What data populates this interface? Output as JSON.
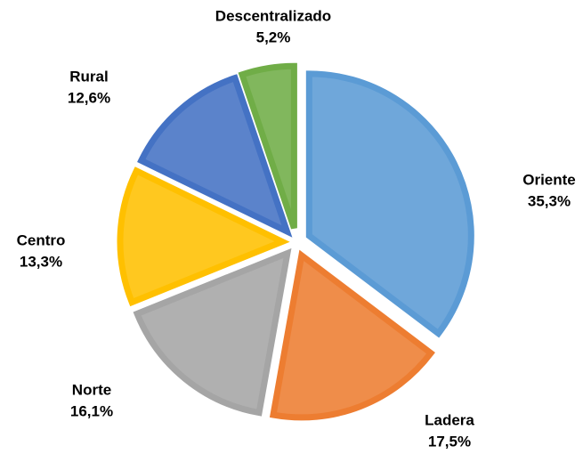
{
  "chart_data": {
    "type": "pie",
    "categories": [
      "Oriente",
      "Ladera",
      "Norte",
      "Centro",
      "Rural",
      "Descentralizado"
    ],
    "values": [
      35.3,
      17.5,
      16.1,
      13.3,
      12.6,
      5.2
    ],
    "value_labels": [
      "35,3%",
      "17,5%",
      "16,1%",
      "13,3%",
      "12,6%",
      "5,2%"
    ],
    "colors": [
      "#5b9bd5",
      "#ed7d31",
      "#a5a5a5",
      "#ffc000",
      "#4472c4",
      "#70ad47"
    ]
  }
}
